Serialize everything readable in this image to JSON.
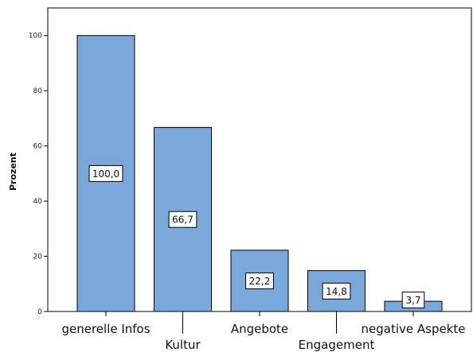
{
  "chart_data": {
    "type": "bar",
    "categories": [
      "generelle Infos",
      "Kultur",
      "Angebote",
      "Engagement",
      "negative Aspekte"
    ],
    "values": [
      100.0,
      66.7,
      22.2,
      14.8,
      3.7
    ],
    "value_labels": [
      "100,0",
      "66,7",
      "22,2",
      "14,8",
      "3,7"
    ],
    "ylabel": "Prozent",
    "xlabel": "",
    "title": "",
    "ylim": [
      0,
      110
    ],
    "yticks": [
      0,
      20,
      40,
      60,
      80,
      100
    ],
    "grid": false,
    "bar_color": "#7aa8d8",
    "bar_edge_color": "#000000",
    "label_box_color": "#ffffff"
  }
}
